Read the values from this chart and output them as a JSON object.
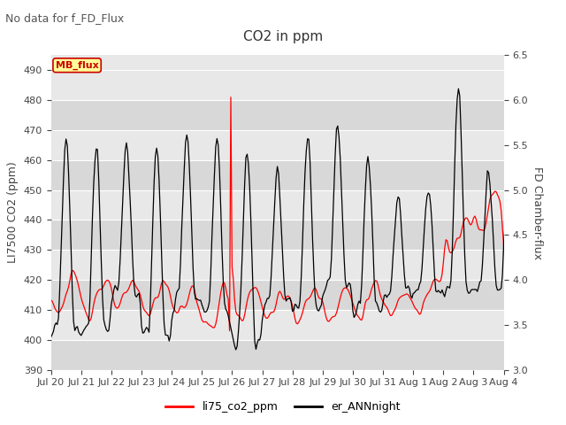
{
  "title": "CO2 in ppm",
  "subtitle": "No data for f_FD_Flux",
  "ylabel_left": "LI7500 CO2 (ppm)",
  "ylabel_right": "FD Chamber-flux",
  "ylim_left": [
    390,
    495
  ],
  "ylim_right": [
    3.0,
    6.5
  ],
  "yticks_left": [
    390,
    400,
    410,
    420,
    430,
    440,
    450,
    460,
    470,
    480,
    490
  ],
  "yticks_right": [
    3.0,
    3.5,
    4.0,
    4.5,
    5.0,
    5.5,
    6.0,
    6.5
  ],
  "xtick_labels": [
    "Jul 20",
    "Jul 21",
    "Jul 22",
    "Jul 23",
    "Jul 24",
    "Jul 25",
    "Jul 26",
    "Jul 27",
    "Jul 28",
    "Jul 29",
    "Jul 30",
    "Jul 31",
    "Aug 1",
    "Aug 2",
    "Aug 3",
    "Aug 4"
  ],
  "legend_entries": [
    "li75_co2_ppm",
    "er_ANNnight"
  ],
  "legend_colors": [
    "#ff0000",
    "#000000"
  ],
  "mb_flux_box_color": "#ffff99",
  "mb_flux_text_color": "#cc0000",
  "mb_flux_border_color": "#cc0000",
  "line_color_red": "#ff0000",
  "line_color_black": "#000000",
  "background_color": "#ffffff",
  "plot_bg_color": "#e8e8e8",
  "stripe_color": "#d8d8d8",
  "grid_color": "#ffffff",
  "title_fontsize": 11,
  "label_fontsize": 9,
  "tick_fontsize": 8
}
